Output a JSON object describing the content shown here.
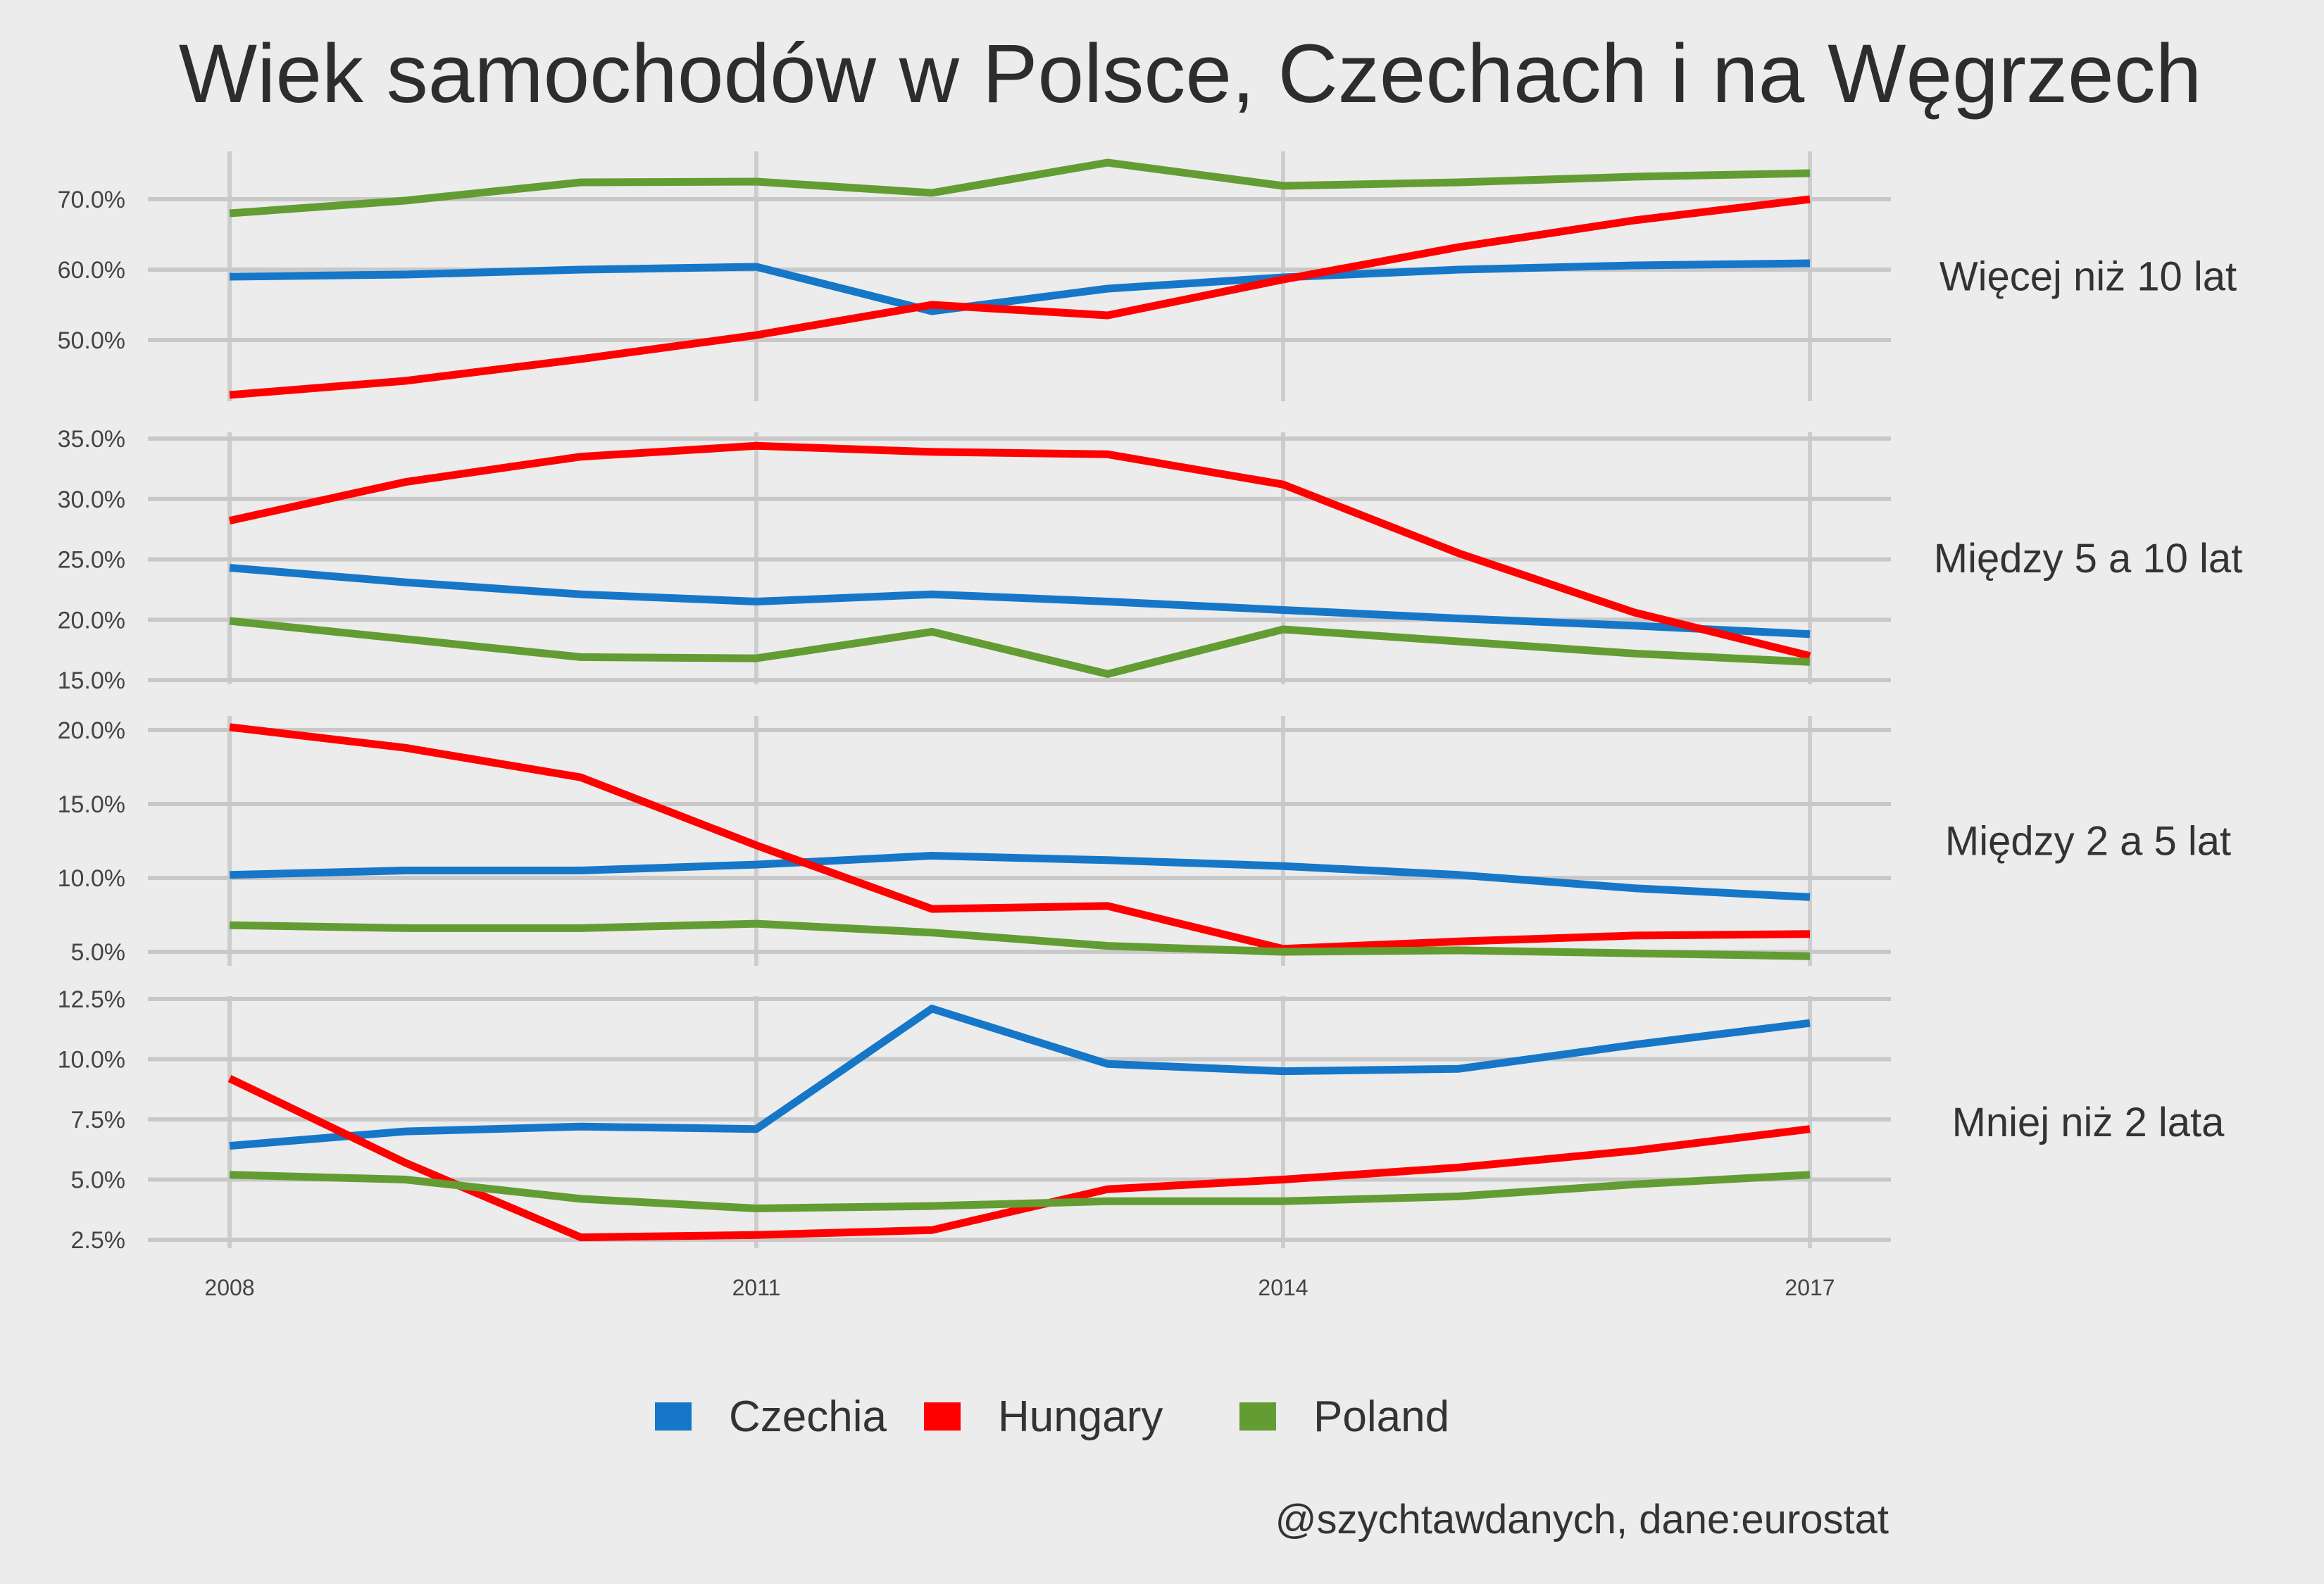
{
  "chart_data": {
    "type": "line",
    "title": "Wiek samochodów w Polsce, Czechach i na Węgrzech",
    "caption": "@szychtawdanych, dane:eurostat",
    "x": [
      2008,
      2009,
      2010,
      2011,
      2012,
      2013,
      2014,
      2015,
      2016,
      2017
    ],
    "x_ticks": [
      "2008",
      "2011",
      "2014",
      "2017"
    ],
    "x_tick_values": [
      2008,
      2011,
      2014,
      2017
    ],
    "legend": {
      "position": "bottom",
      "items": [
        {
          "name": "Czechia",
          "color": "#1677c8"
        },
        {
          "name": "Hungary",
          "color": "#ff0000"
        },
        {
          "name": "Poland",
          "color": "#639c33"
        }
      ]
    },
    "grid": true,
    "panels": [
      {
        "label": "Więcej niż 10 lat",
        "ylim": [
          42.5,
          75.0
        ],
        "y_ticks": [
          "50.0%",
          "60.0%",
          "70.0%"
        ],
        "y_tick_values": [
          50,
          60,
          70
        ],
        "series": [
          {
            "name": "Czechia",
            "values": [
              59.0,
              59.3,
              60.0,
              60.4,
              54.1,
              57.3,
              58.9,
              60.0,
              60.6,
              60.9
            ]
          },
          {
            "name": "Hungary",
            "values": [
              42.2,
              44.2,
              47.3,
              50.7,
              55.0,
              53.5,
              58.6,
              63.2,
              67.0,
              70.0
            ]
          },
          {
            "name": "Poland",
            "values": [
              68.0,
              69.8,
              72.4,
              72.5,
              70.9,
              75.2,
              71.9,
              72.4,
              73.2,
              73.7
            ]
          }
        ]
      },
      {
        "label": "Między 5 a 10 lat",
        "ylim": [
          15.0,
          35.0
        ],
        "y_ticks": [
          "15.0%",
          "20.0%",
          "25.0%",
          "30.0%",
          "35.0%"
        ],
        "y_tick_values": [
          15,
          20,
          25,
          30,
          35
        ],
        "series": [
          {
            "name": "Czechia",
            "values": [
              24.3,
              23.1,
              22.1,
              21.5,
              22.1,
              21.5,
              20.8,
              20.1,
              19.5,
              18.8
            ]
          },
          {
            "name": "Hungary",
            "values": [
              28.2,
              31.4,
              33.5,
              34.4,
              33.9,
              33.7,
              31.2,
              25.5,
              20.6,
              17.0
            ]
          },
          {
            "name": "Poland",
            "values": [
              19.9,
              18.4,
              16.9,
              16.8,
              19.0,
              15.5,
              19.2,
              18.2,
              17.2,
              16.5
            ]
          }
        ]
      },
      {
        "label": "Między 2 a 5 lat",
        "ylim": [
          5.0,
          20.0
        ],
        "y_ticks": [
          "5.0%",
          "10.0%",
          "15.0%",
          "20.0%"
        ],
        "y_tick_values": [
          5,
          10,
          15,
          20
        ],
        "series": [
          {
            "name": "Czechia",
            "values": [
              10.2,
              10.5,
              10.5,
              10.9,
              11.5,
              11.2,
              10.8,
              10.2,
              9.3,
              8.7
            ]
          },
          {
            "name": "Hungary",
            "values": [
              20.2,
              18.8,
              16.8,
              12.2,
              7.9,
              8.1,
              5.2,
              5.7,
              6.1,
              6.2
            ]
          },
          {
            "name": "Poland",
            "values": [
              6.8,
              6.6,
              6.6,
              6.9,
              6.3,
              5.4,
              5.0,
              5.1,
              4.9,
              4.7
            ]
          }
        ]
      },
      {
        "label": "Mniej niż 2 lata",
        "ylim": [
          2.5,
          12.5
        ],
        "y_ticks": [
          "2.5%",
          "5.0%",
          "7.5%",
          "10.0%",
          "12.5%"
        ],
        "y_tick_values": [
          2.5,
          5.0,
          7.5,
          10.0,
          12.5
        ],
        "series": [
          {
            "name": "Czechia",
            "values": [
              6.4,
              7.0,
              7.2,
              7.1,
              12.1,
              9.8,
              9.5,
              9.6,
              10.6,
              11.5
            ]
          },
          {
            "name": "Hungary",
            "values": [
              9.2,
              5.7,
              2.6,
              2.7,
              2.9,
              4.6,
              5.0,
              5.5,
              6.2,
              7.1
            ]
          },
          {
            "name": "Poland",
            "values": [
              5.2,
              5.0,
              4.2,
              3.8,
              3.9,
              4.1,
              4.1,
              4.3,
              4.8,
              5.2
            ]
          }
        ]
      }
    ]
  }
}
